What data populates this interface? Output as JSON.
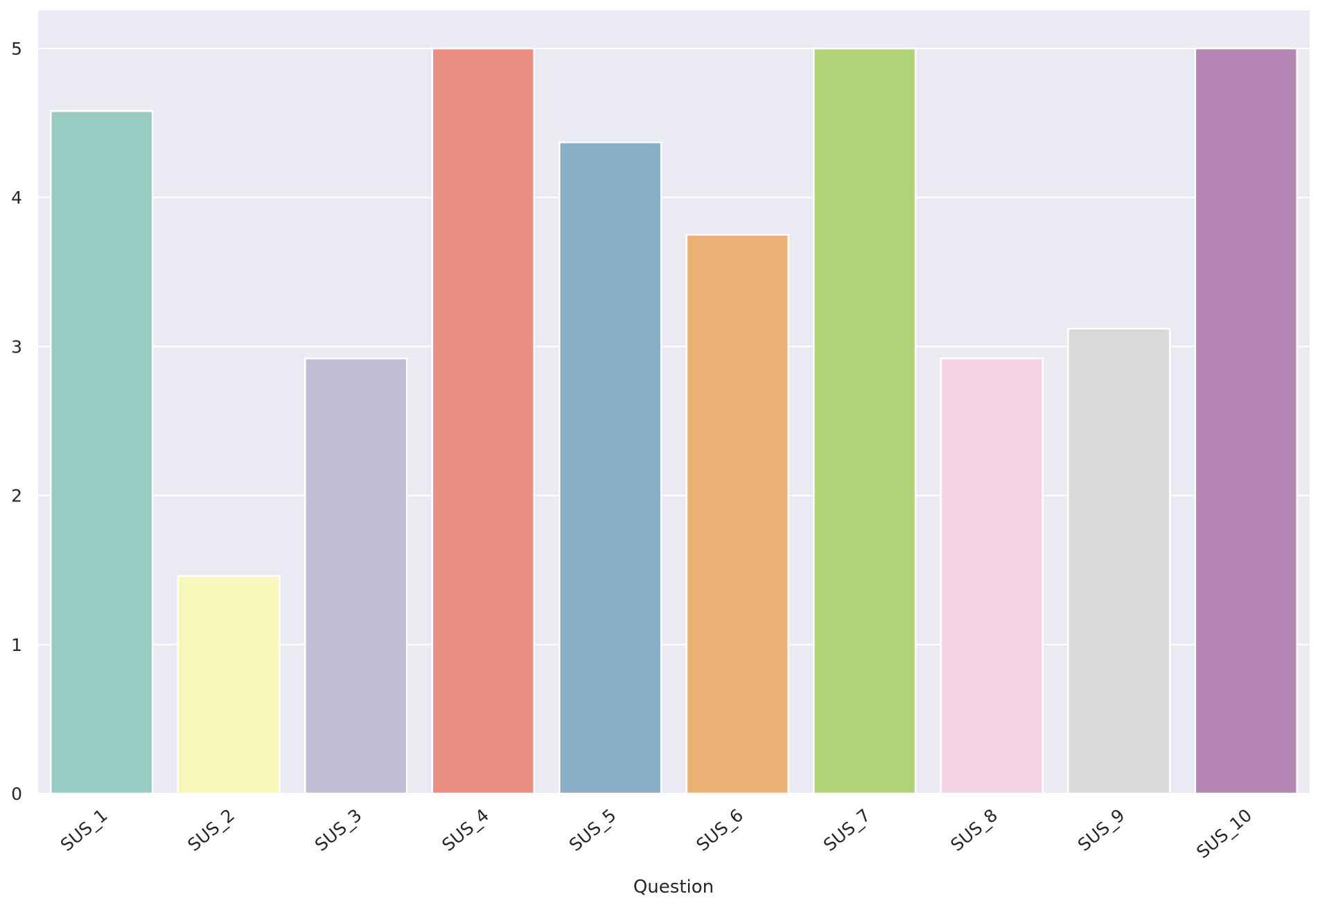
{
  "chart_data": {
    "type": "bar",
    "title": "",
    "xlabel": "Question",
    "ylabel": "",
    "categories": [
      "SUS_1",
      "SUS_2",
      "SUS_3",
      "SUS_4",
      "SUS_5",
      "SUS_6",
      "SUS_7",
      "SUS_8",
      "SUS_9",
      "SUS_10"
    ],
    "values": [
      4.58,
      1.46,
      2.92,
      5.0,
      4.37,
      3.75,
      5.0,
      2.92,
      3.12,
      5.0
    ],
    "colors": [
      "#98cbc1",
      "#f7f7b9",
      "#c2bed6",
      "#eb8e82",
      "#8aaec8",
      "#ebb073",
      "#b0d37a",
      "#f5d2e3",
      "#d9d9d9",
      "#b686b5"
    ],
    "yticks": [
      "0",
      "1",
      "2",
      "3",
      "4",
      "5"
    ],
    "ylim": [
      0,
      5.25
    ],
    "grid": true,
    "background": "#eaeaf2",
    "gridline_color": "#ffffff",
    "legend": "none"
  }
}
